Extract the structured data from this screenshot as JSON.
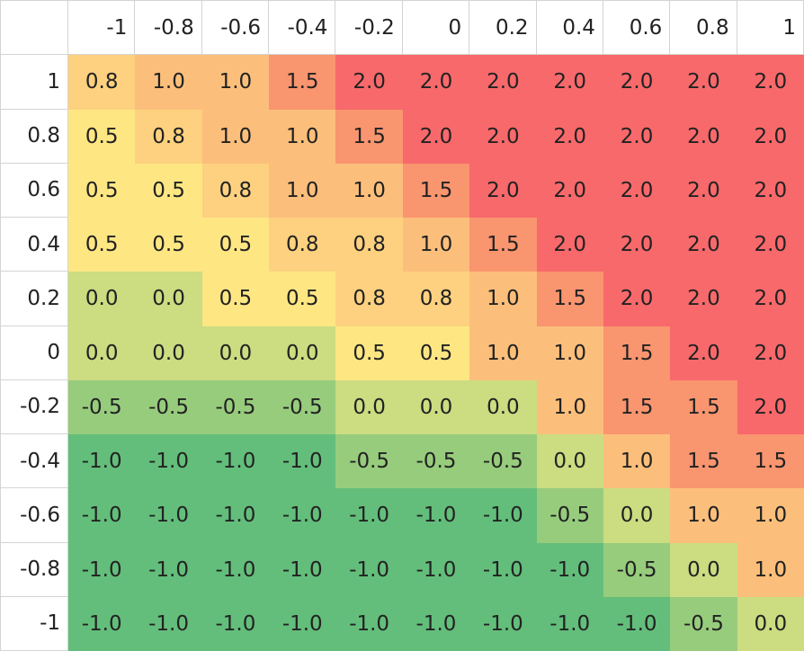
{
  "chart_data": {
    "type": "heatmap",
    "x": [
      "-1",
      "-0.8",
      "-0.6",
      "-0.4",
      "-0.2",
      "0",
      "0.2",
      "0.4",
      "0.6",
      "0.8",
      "1"
    ],
    "y": [
      "1",
      "0.8",
      "0.6",
      "0.4",
      "0.2",
      "0",
      "-0.2",
      "-0.4",
      "-0.6",
      "-0.8",
      "-1"
    ],
    "values": [
      [
        "0.8",
        "1.0",
        "1.0",
        "1.5",
        "2.0",
        "2.0",
        "2.0",
        "2.0",
        "2.0",
        "2.0",
        "2.0"
      ],
      [
        "0.5",
        "0.8",
        "1.0",
        "1.0",
        "1.5",
        "2.0",
        "2.0",
        "2.0",
        "2.0",
        "2.0",
        "2.0"
      ],
      [
        "0.5",
        "0.5",
        "0.8",
        "1.0",
        "1.0",
        "1.5",
        "2.0",
        "2.0",
        "2.0",
        "2.0",
        "2.0"
      ],
      [
        "0.5",
        "0.5",
        "0.5",
        "0.8",
        "0.8",
        "1.0",
        "1.5",
        "2.0",
        "2.0",
        "2.0",
        "2.0"
      ],
      [
        "0.0",
        "0.0",
        "0.5",
        "0.5",
        "0.8",
        "0.8",
        "1.0",
        "1.5",
        "2.0",
        "2.0",
        "2.0"
      ],
      [
        "0.0",
        "0.0",
        "0.0",
        "0.0",
        "0.5",
        "0.5",
        "1.0",
        "1.0",
        "1.5",
        "2.0",
        "2.0"
      ],
      [
        "-0.5",
        "-0.5",
        "-0.5",
        "-0.5",
        "0.0",
        "0.0",
        "0.0",
        "1.0",
        "1.5",
        "1.5",
        "2.0"
      ],
      [
        "-1.0",
        "-1.0",
        "-1.0",
        "-1.0",
        "-0.5",
        "-0.5",
        "-0.5",
        "0.0",
        "1.0",
        "1.5",
        "1.5"
      ],
      [
        "-1.0",
        "-1.0",
        "-1.0",
        "-1.0",
        "-1.0",
        "-1.0",
        "-1.0",
        "-0.5",
        "0.0",
        "1.0",
        "1.0"
      ],
      [
        "-1.0",
        "-1.0",
        "-1.0",
        "-1.0",
        "-1.0",
        "-1.0",
        "-1.0",
        "-1.0",
        "-0.5",
        "0.0",
        "1.0"
      ],
      [
        "-1.0",
        "-1.0",
        "-1.0",
        "-1.0",
        "-1.0",
        "-1.0",
        "-1.0",
        "-1.0",
        "-1.0",
        "-0.5",
        "0.0"
      ]
    ],
    "color_scale": {
      "-1.0": "#63be7b",
      "-0.5": "#97cc7d",
      "0.0": "#cbdc81",
      "0.5": "#fee783",
      "0.8": "#fdd17f",
      "1.0": "#fcbf7b",
      "1.5": "#f9956f",
      "2.0": "#f8696b"
    },
    "colors": {
      "grid_line": "#d4d4d4",
      "text": "#222222",
      "header_background": "#ffffff"
    }
  }
}
